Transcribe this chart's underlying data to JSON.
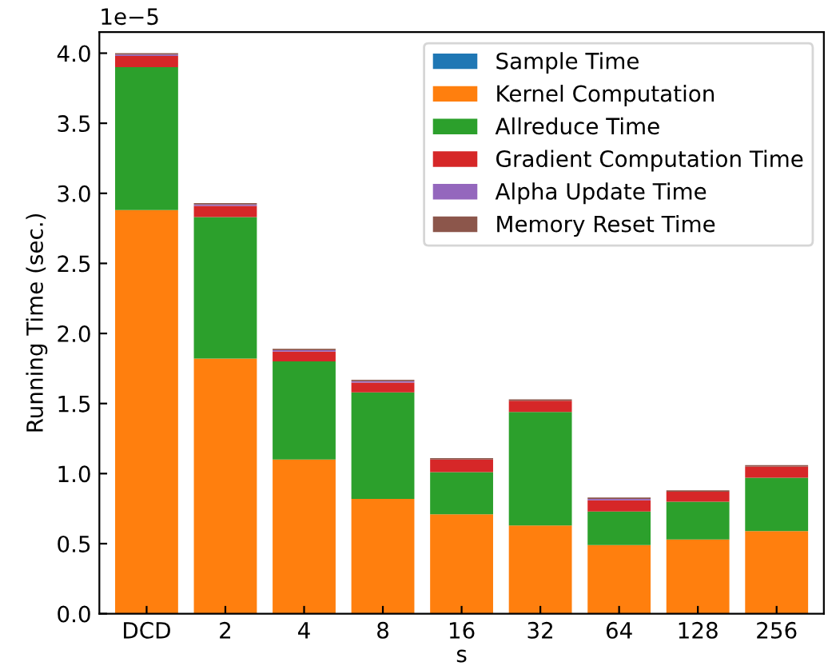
{
  "chart_data": {
    "type": "bar",
    "stacked": true,
    "xlabel": "s",
    "ylabel": "Running Time (sec.)",
    "categories": [
      "DCD",
      "2",
      "4",
      "8",
      "16",
      "32",
      "64",
      "128",
      "256"
    ],
    "series": [
      {
        "name": "Sample Time",
        "color": "#1f77b4",
        "values": [
          0,
          0,
          0,
          0,
          0,
          0,
          0,
          0,
          0
        ]
      },
      {
        "name": "Kernel Computation",
        "color": "#ff7f0e",
        "values": [
          2.88,
          1.82,
          1.1,
          0.82,
          0.71,
          0.63,
          0.49,
          0.53,
          0.59
        ]
      },
      {
        "name": "Allreduce Time",
        "color": "#2ca02c",
        "values": [
          1.02,
          1.01,
          0.7,
          0.76,
          0.3,
          0.81,
          0.24,
          0.27,
          0.38
        ]
      },
      {
        "name": "Gradient Computation Time",
        "color": "#d62728",
        "values": [
          0.08,
          0.08,
          0.07,
          0.07,
          0.09,
          0.08,
          0.08,
          0.07,
          0.08
        ]
      },
      {
        "name": "Alpha Update Time",
        "color": "#9467bd",
        "values": [
          0.01,
          0.01,
          0.01,
          0.01,
          0,
          0,
          0.01,
          0,
          0
        ]
      },
      {
        "name": "Memory Reset Time",
        "color": "#8c564b",
        "values": [
          0.01,
          0.01,
          0.01,
          0.01,
          0.01,
          0.01,
          0.01,
          0.01,
          0.01
        ]
      }
    ],
    "ylim": [
      0,
      4.15
    ],
    "yticks": [
      {
        "value": 0,
        "label": "0.0"
      },
      {
        "value": 0.5,
        "label": "0.5"
      },
      {
        "value": 1,
        "label": "1.0"
      },
      {
        "value": 1.5,
        "label": "1.5"
      },
      {
        "value": 2,
        "label": "2.0"
      },
      {
        "value": 2.5,
        "label": "2.5"
      },
      {
        "value": 3,
        "label": "3.0"
      },
      {
        "value": 3.5,
        "label": "3.5"
      },
      {
        "value": 4,
        "label": "4.0"
      }
    ],
    "annotations": [
      "1e−5"
    ],
    "legend": "top right",
    "grid": false
  }
}
